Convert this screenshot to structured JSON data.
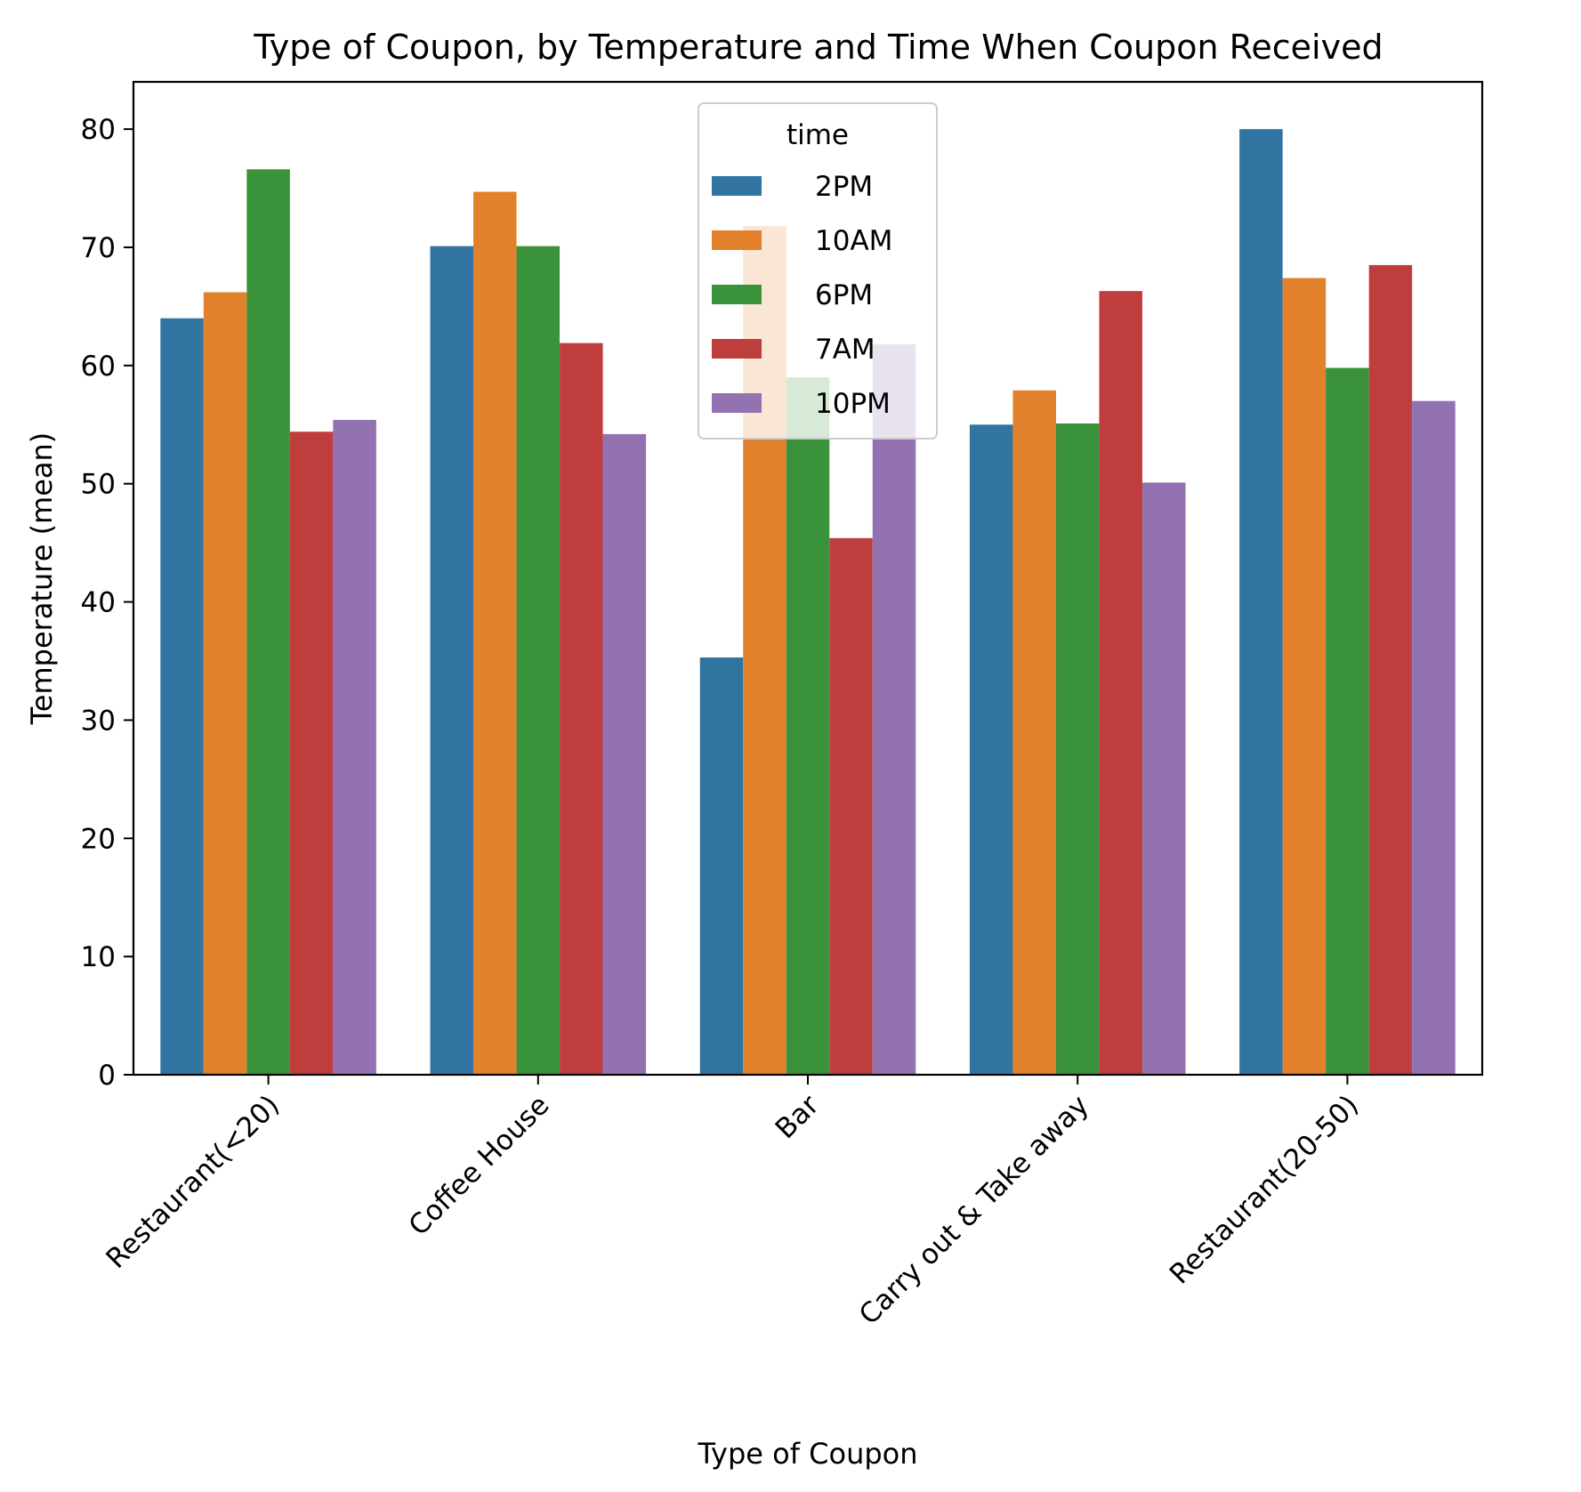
{
  "chart_data": {
    "type": "bar",
    "title": "Type of Coupon, by Temperature and Time When Coupon Received",
    "xlabel": "Type of Coupon",
    "ylabel": "Temperature (mean)",
    "ylim": [
      0,
      84
    ],
    "yticks": [
      0,
      10,
      20,
      30,
      40,
      50,
      60,
      70,
      80
    ],
    "grid": false,
    "legend": {
      "title": "time",
      "placement": "upper-center"
    },
    "categories": [
      "Restaurant(<20)",
      "Coffee House",
      "Bar",
      "Carry out & Take away",
      "Restaurant(20-50)"
    ],
    "series": [
      {
        "name": "2PM",
        "color": "#3274a1",
        "values": [
          64.0,
          70.1,
          35.3,
          55.0,
          80.0
        ]
      },
      {
        "name": "10AM",
        "color": "#e1812c",
        "values": [
          66.2,
          74.7,
          71.8,
          57.9,
          67.4
        ]
      },
      {
        "name": "6PM",
        "color": "#3a923a",
        "values": [
          76.6,
          70.1,
          59.0,
          55.1,
          59.8
        ]
      },
      {
        "name": "7AM",
        "color": "#c03d3e",
        "values": [
          54.4,
          61.9,
          45.4,
          66.3,
          68.5
        ]
      },
      {
        "name": "10PM",
        "color": "#9372b2",
        "values": [
          55.4,
          54.2,
          61.8,
          50.1,
          57.0
        ]
      }
    ]
  }
}
